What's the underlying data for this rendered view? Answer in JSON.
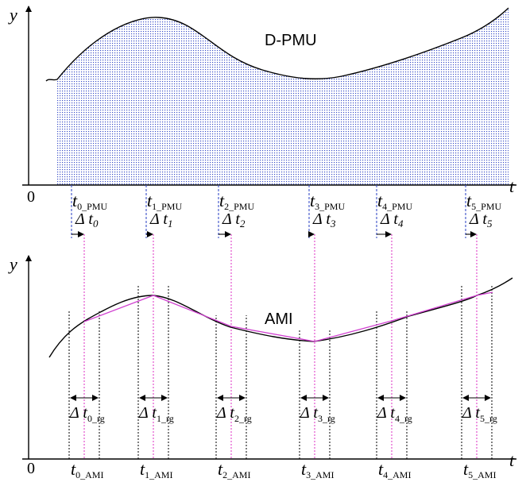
{
  "top_panel": {
    "y_label": "y",
    "t_label": "t",
    "origin_label": "0",
    "title": "D-PMU",
    "sample_labels": [
      {
        "main": "t",
        "sub": "0_PMU"
      },
      {
        "main": "t",
        "sub": "1_PMU"
      },
      {
        "main": "t",
        "sub": "2_PMU"
      },
      {
        "main": "t",
        "sub": "3_PMU"
      },
      {
        "main": "t",
        "sub": "4_PMU"
      },
      {
        "main": "t",
        "sub": "5_PMU"
      }
    ],
    "delta_labels": [
      {
        "delta": "Δ",
        "main": "t",
        "sub": "0"
      },
      {
        "delta": "Δ",
        "main": "t",
        "sub": "1"
      },
      {
        "delta": "Δ",
        "main": "t",
        "sub": "2"
      },
      {
        "delta": "Δ",
        "main": "t",
        "sub": "3"
      },
      {
        "delta": "Δ",
        "main": "t",
        "sub": "4"
      },
      {
        "delta": "Δ",
        "main": "t",
        "sub": "5"
      }
    ]
  },
  "bottom_panel": {
    "y_label": "y",
    "t_label": "t",
    "origin_label": "0",
    "title": "AMI",
    "window_labels": [
      {
        "delta": "Δ",
        "main": "t",
        "sub": "0_rg"
      },
      {
        "delta": "Δ",
        "main": "t",
        "sub": "1_rg"
      },
      {
        "delta": "Δ",
        "main": "t",
        "sub": "2_rg"
      },
      {
        "delta": "Δ",
        "main": "t",
        "sub": "3_rg"
      },
      {
        "delta": "Δ",
        "main": "t",
        "sub": "4_rg"
      },
      {
        "delta": "Δ",
        "main": "t",
        "sub": "5_rg"
      }
    ],
    "sample_labels": [
      {
        "main": "t",
        "sub": "0_AMI"
      },
      {
        "main": "t",
        "sub": "1_AMI"
      },
      {
        "main": "t",
        "sub": "2_AMI"
      },
      {
        "main": "t",
        "sub": "3_AMI"
      },
      {
        "main": "t",
        "sub": "4_AMI"
      },
      {
        "main": "t",
        "sub": "5_AMI"
      }
    ]
  },
  "colors": {
    "curve": "#000000",
    "dpmu_fill": "#3a4fc8",
    "sync_line": "#e040c8",
    "ami_polyline": "#d040d0",
    "window_line": "#000000"
  }
}
